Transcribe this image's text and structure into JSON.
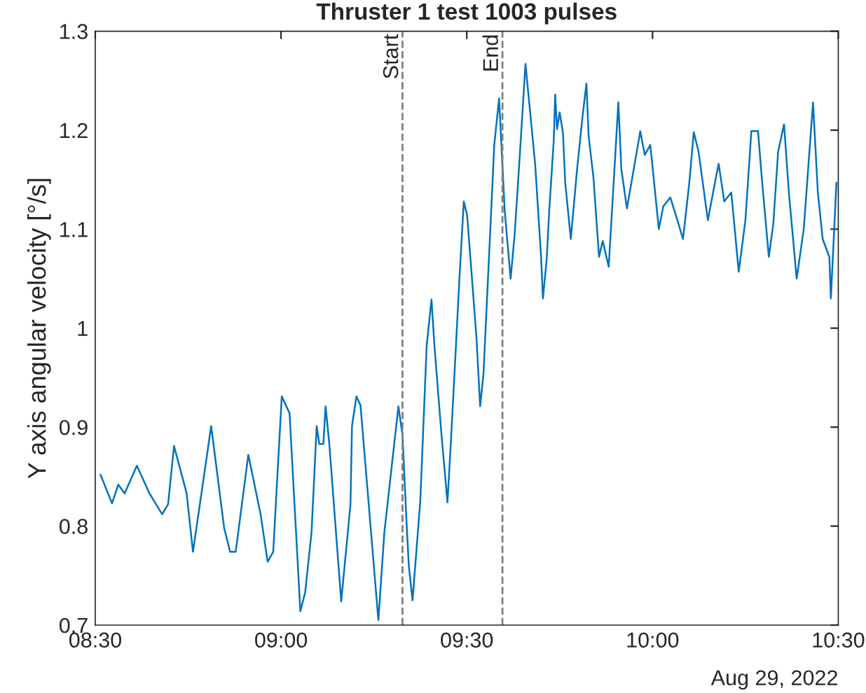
{
  "chart_data": {
    "type": "line",
    "title": "Thruster 1 test 1003 pulses",
    "ylabel": "Y axis angular velocity [°/s]",
    "x": [
      8.514,
      8.545,
      8.562,
      8.579,
      8.612,
      8.646,
      8.68,
      8.696,
      8.712,
      8.746,
      8.763,
      8.812,
      8.847,
      8.863,
      8.878,
      8.912,
      8.945,
      8.964,
      8.979,
      9.002,
      9.023,
      9.052,
      9.065,
      9.082,
      9.096,
      9.103,
      9.114,
      9.12,
      9.13,
      9.162,
      9.187,
      9.191,
      9.203,
      9.214,
      9.225,
      9.262,
      9.278,
      9.316,
      9.327,
      9.338,
      9.344,
      9.354,
      9.375,
      9.392,
      9.405,
      9.413,
      9.432,
      9.448,
      9.457,
      9.48,
      9.492,
      9.501,
      9.526,
      9.536,
      9.545,
      9.564,
      9.574,
      9.587,
      9.602,
      9.618,
      9.629,
      9.646,
      9.658,
      9.684,
      9.7,
      9.705,
      9.715,
      9.722,
      9.734,
      9.738,
      9.743,
      9.75,
      9.759,
      9.765,
      9.78,
      9.797,
      9.812,
      9.822,
      9.828,
      9.841,
      9.856,
      9.866,
      9.882,
      9.891,
      9.908,
      9.916,
      9.931,
      9.952,
      9.967,
      9.979,
      9.994,
      10.017,
      10.029,
      10.048,
      10.067,
      10.082,
      10.099,
      10.111,
      10.124,
      10.149,
      10.168,
      10.178,
      10.193,
      10.212,
      10.232,
      10.25,
      10.266,
      10.284,
      10.294,
      10.313,
      10.325,
      10.338,
      10.354,
      10.367,
      10.388,
      10.407,
      10.432,
      10.445,
      10.458,
      10.476,
      10.48,
      10.495
    ],
    "series": [
      {
        "color": "#0072bd",
        "values": [
          0.852,
          0.823,
          0.842,
          0.833,
          0.861,
          0.833,
          0.812,
          0.822,
          0.881,
          0.833,
          0.774,
          0.901,
          0.798,
          0.774,
          0.774,
          0.872,
          0.812,
          0.764,
          0.774,
          0.931,
          0.914,
          0.714,
          0.733,
          0.793,
          0.901,
          0.883,
          0.883,
          0.921,
          0.883,
          0.724,
          0.822,
          0.901,
          0.931,
          0.922,
          0.872,
          0.705,
          0.793,
          0.921,
          0.892,
          0.803,
          0.76,
          0.725,
          0.826,
          0.982,
          1.029,
          0.982,
          0.892,
          0.824,
          0.883,
          1.048,
          1.128,
          1.114,
          0.991,
          0.921,
          0.954,
          1.105,
          1.185,
          1.232,
          1.119,
          1.05,
          1.095,
          1.194,
          1.267,
          1.166,
          1.072,
          1.03,
          1.069,
          1.119,
          1.189,
          1.236,
          1.201,
          1.218,
          1.197,
          1.147,
          1.09,
          1.161,
          1.215,
          1.247,
          1.194,
          1.152,
          1.072,
          1.088,
          1.062,
          1.119,
          1.228,
          1.161,
          1.121,
          1.166,
          1.199,
          1.175,
          1.185,
          1.1,
          1.123,
          1.132,
          1.109,
          1.09,
          1.147,
          1.198,
          1.178,
          1.109,
          1.147,
          1.166,
          1.128,
          1.137,
          1.057,
          1.109,
          1.199,
          1.199,
          1.152,
          1.072,
          1.105,
          1.178,
          1.206,
          1.137,
          1.05,
          1.1,
          1.228,
          1.137,
          1.09,
          1.072,
          1.03,
          1.147
        ]
      }
    ],
    "xlim": [
      8.5,
      10.5
    ],
    "xticks": [
      {
        "value": 8.5,
        "label": "08:30"
      },
      {
        "value": 9,
        "label": "09:00"
      },
      {
        "value": 9.5,
        "label": "09:30"
      },
      {
        "value": 10,
        "label": "10:00"
      },
      {
        "value": 10.5,
        "label": "10:30"
      }
    ],
    "ylim": [
      0.7,
      1.3
    ],
    "yticks": [
      0.7,
      0.8,
      0.9,
      1,
      1.1,
      1.2,
      1.3
    ],
    "ref_lines": [
      {
        "axis": "x",
        "value": 9.327,
        "label": "Start",
        "color": "#808080",
        "line_style": "dashed"
      },
      {
        "axis": "x",
        "value": 9.596,
        "label": "End",
        "color": "#808080",
        "line_style": "dashed"
      }
    ],
    "annotations": [
      "Aug 29, 2022"
    ],
    "grid": false,
    "legend": false
  }
}
